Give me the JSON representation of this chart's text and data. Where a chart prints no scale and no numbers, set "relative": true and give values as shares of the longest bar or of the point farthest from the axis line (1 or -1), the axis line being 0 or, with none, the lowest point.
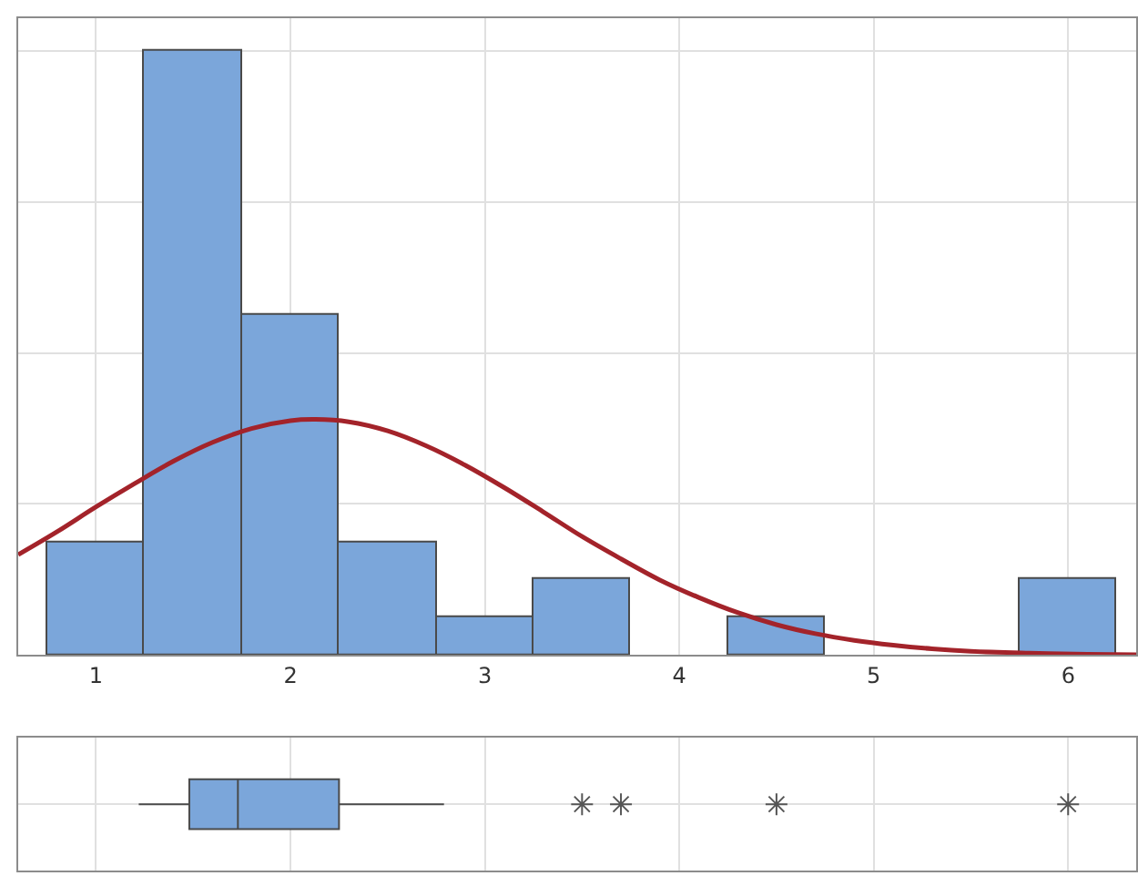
{
  "chart_data": [
    {
      "type": "histogram",
      "relative": true,
      "bins": [
        0.75,
        1.25,
        1.75,
        2.25,
        2.75,
        3.25,
        3.75,
        4.25,
        4.75,
        5.25,
        5.75,
        6.25
      ],
      "xlim": [
        0.6,
        6.35
      ],
      "xticks": [
        1,
        2,
        3,
        4,
        5,
        6
      ],
      "tick_labels": "x",
      "grid": true,
      "series": [
        {
          "type": "histogram",
          "color": "#7ba6da",
          "values": [
            0.1875,
            1,
            0.5625,
            0.1875,
            0.0625,
            0.125,
            0,
            0.0625,
            0,
            0,
            0.125
          ]
        },
        {
          "type": "line",
          "color": "#a3232a",
          "x": [
            0.6,
            0.8,
            1.0,
            1.2,
            1.4,
            1.6,
            1.8,
            2.0,
            2.13,
            2.3,
            2.5,
            2.7,
            2.9,
            3.1,
            3.3,
            3.5,
            3.7,
            3.9,
            4.1,
            4.3,
            4.5,
            4.7,
            4.9,
            5.1,
            5.3,
            5.5,
            5.8,
            6.1,
            6.35
          ],
          "values": [
            0.166,
            0.204,
            0.245,
            0.284,
            0.321,
            0.352,
            0.375,
            0.388,
            0.39,
            0.386,
            0.371,
            0.346,
            0.314,
            0.277,
            0.237,
            0.196,
            0.159,
            0.124,
            0.095,
            0.07,
            0.05,
            0.035,
            0.024,
            0.016,
            0.01,
            0.006,
            0.003,
            0.001,
            0.0
          ]
        }
      ]
    },
    {
      "type": "box",
      "orientation": "horizontal",
      "categories": [
        null
      ],
      "color": "#7ba6da",
      "xlim": [
        0.6,
        6.35
      ],
      "xticks": [
        1,
        2,
        3,
        4,
        5,
        6
      ],
      "tick_labels": false,
      "grid": "x",
      "boxes": [
        {
          "low": 1.22,
          "q1": 1.48,
          "median": 1.73,
          "q3": 2.25,
          "high": 2.79,
          "outliers": [
            3.5,
            3.7,
            4.5,
            6.0
          ]
        }
      ]
    }
  ]
}
